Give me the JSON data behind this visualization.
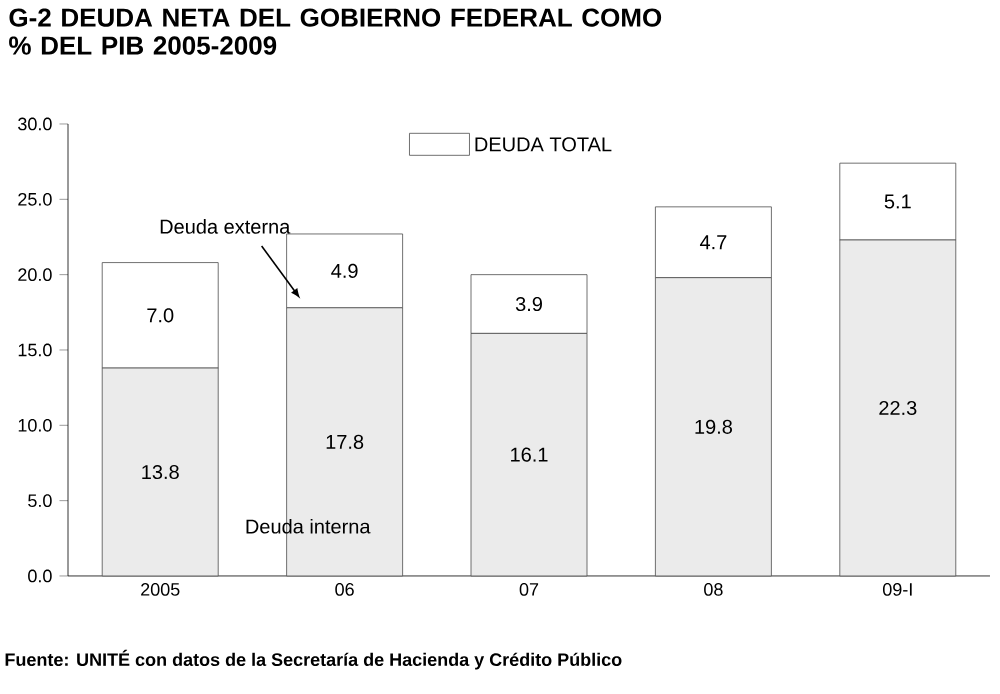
{
  "chart_data": {
    "type": "bar",
    "stacked": true,
    "title": "G-2 DEUDA NETA DEL GOBIERNO FEDERAL COMO % DEL PIB 2005-2009",
    "categories": [
      "2005",
      "06",
      "07",
      "08",
      "09-I"
    ],
    "series": [
      {
        "name": "Deuda interna",
        "color": "#ebebeb",
        "values": [
          13.8,
          17.8,
          16.1,
          19.8,
          22.3
        ],
        "value_labels": [
          "13.8",
          "17.8",
          "16.1",
          "19.8",
          "22.3"
        ]
      },
      {
        "name": "Deuda externa",
        "color": "#ffffff",
        "values": [
          7.0,
          4.9,
          3.9,
          4.7,
          5.1
        ],
        "value_labels": [
          "7.0",
          "4.9",
          "3.9",
          "4.7",
          "5.1"
        ]
      }
    ],
    "legend_title": "DEUDA TOTAL",
    "ylim": [
      0,
      30
    ],
    "yticks": [
      {
        "value": 0,
        "label": "0.0"
      },
      {
        "value": 5,
        "label": "5.0"
      },
      {
        "value": 10,
        "label": "10.0"
      },
      {
        "value": 15,
        "label": "15.0"
      },
      {
        "value": 20,
        "label": "20.0"
      },
      {
        "value": 25,
        "label": "25.0"
      },
      {
        "value": 30,
        "label": "30.0"
      }
    ],
    "annotations": [
      "Fuente: UNITÉ con datos de la Secretaría de Hacienda y Crédito Público"
    ]
  }
}
